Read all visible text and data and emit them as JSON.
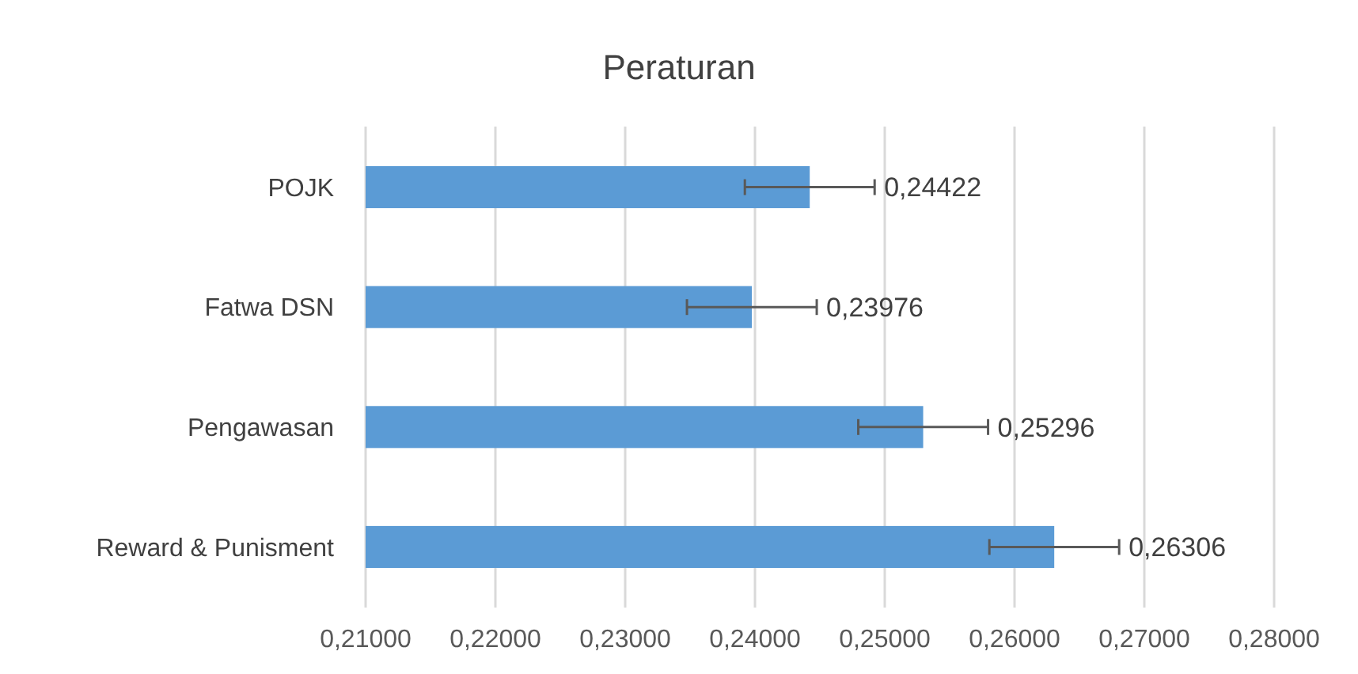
{
  "chart_data": {
    "type": "bar",
    "orientation": "horizontal",
    "title": "Peraturan",
    "categories": [
      "POJK",
      "Fatwa DSN",
      "Pengawasan",
      "Reward & Punisment"
    ],
    "values": [
      0.24422,
      0.23976,
      0.25296,
      0.26306
    ],
    "value_labels": [
      "0,24422",
      "0,23976",
      "0,25296",
      "0,26306"
    ],
    "errors": [
      0.005,
      0.005,
      0.005,
      0.005
    ],
    "color": "#5b9bd5",
    "xlim": [
      0.21,
      0.28
    ],
    "xticks": [
      {
        "value": 0.21,
        "label": "0,21000"
      },
      {
        "value": 0.22,
        "label": "0,22000"
      },
      {
        "value": 0.23,
        "label": "0,23000"
      },
      {
        "value": 0.24,
        "label": "0,24000"
      },
      {
        "value": 0.25,
        "label": "0,25000"
      },
      {
        "value": 0.26,
        "label": "0,26000"
      },
      {
        "value": 0.27,
        "label": "0,27000"
      },
      {
        "value": 0.28,
        "label": "0,28000"
      }
    ],
    "grid": "x"
  }
}
